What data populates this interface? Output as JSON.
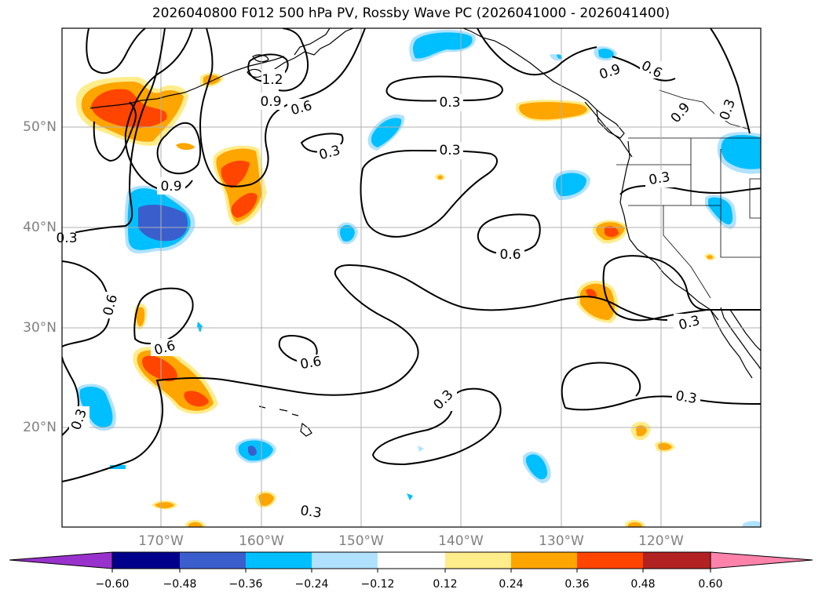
{
  "title": "2026040800 F012 500 hPa PV, Rossby Wave PC (2026041000 - 2026041400)",
  "lat_labels": [
    "50°N",
    "40°N",
    "30°N",
    "20°N"
  ],
  "lon_labels": [
    "170°W",
    "160°W",
    "150°W",
    "140°W",
    "130°W",
    "120°W"
  ],
  "contour_labels": [
    "1.2",
    "0.9",
    "0.6",
    "0.3",
    "0.3",
    "0.9",
    "0.9",
    "0.6",
    "0.3",
    "0.3",
    "0.9",
    "0.3",
    "0.6",
    "0.6",
    "0.6",
    "0.3",
    "0.6",
    "0.3",
    "0.3",
    "0.3",
    "0.3",
    "0.3"
  ],
  "colorbar": {
    "ticks": [
      "−0.60",
      "−0.48",
      "−0.36",
      "−0.24",
      "−0.12",
      "0.12",
      "0.24",
      "0.36",
      "0.48",
      "0.60"
    ],
    "colors": [
      "#9932cc",
      "#00008b",
      "#3a5fcd",
      "#00bfff",
      "#b0e2ff",
      "#ffffff",
      "#ffec8b",
      "#ffa500",
      "#ff4500",
      "#b22222",
      "#ff82ab"
    ]
  },
  "colors": {
    "contour": "#000000",
    "grid": "#b0b0b0",
    "coast": "#000000"
  }
}
